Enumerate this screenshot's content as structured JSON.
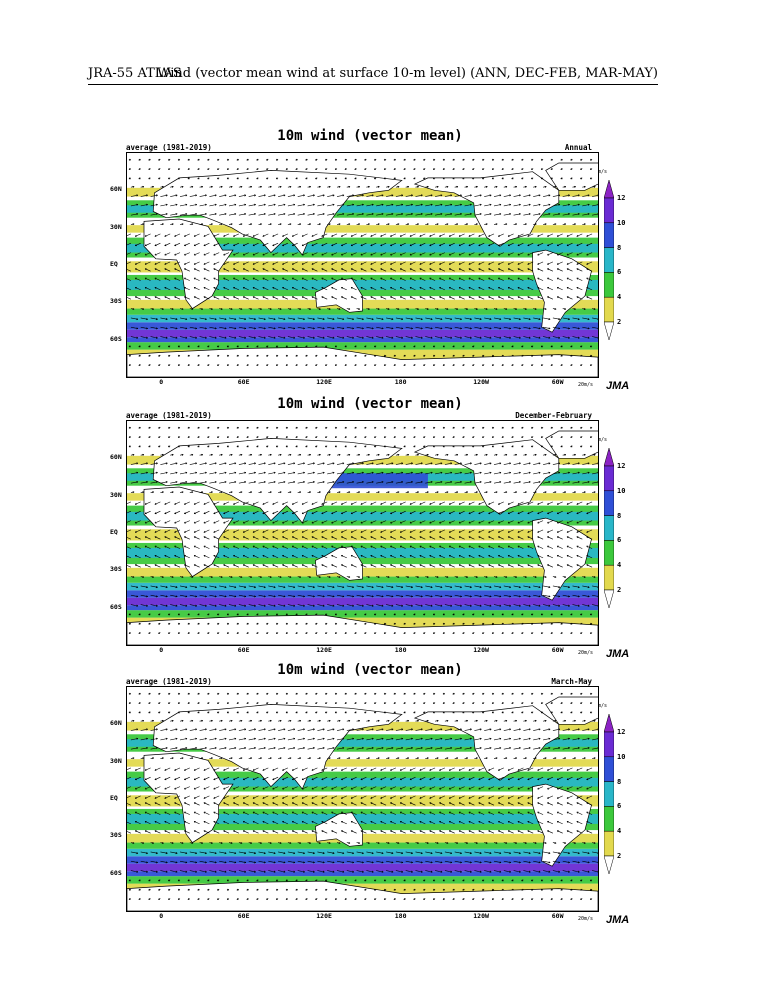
{
  "header": {
    "left": "JRA-55 ATLAS",
    "right": "Wind (vector mean wind at surface 10-m level) (ANN, DEC-FEB, MAR-MAY)"
  },
  "common": {
    "title": "10m wind (vector mean)",
    "period": "average (1981-2019)",
    "source": "JMA",
    "ref_vector": "20m/s",
    "unit": "m/s",
    "lat_labels": [
      "60N",
      "30N",
      "EQ",
      "30S",
      "60S"
    ],
    "lon_labels": [
      "0",
      "60E",
      "120E",
      "180",
      "120W",
      "60W"
    ],
    "colorbar_labels": [
      "2",
      "4",
      "6",
      "8",
      "10",
      "12"
    ],
    "colors": {
      "lt2": "#ffffff",
      "c2_4": "#e2d94e",
      "c4_6": "#3cc83c",
      "c6_8": "#29b6c8",
      "c8_10": "#2f4fd6",
      "c10_12": "#6a2bd3",
      "gt12": "#8b22c4"
    }
  },
  "panels": [
    {
      "season": "Annual"
    },
    {
      "season": "December-February"
    },
    {
      "season": "March-May"
    }
  ]
}
